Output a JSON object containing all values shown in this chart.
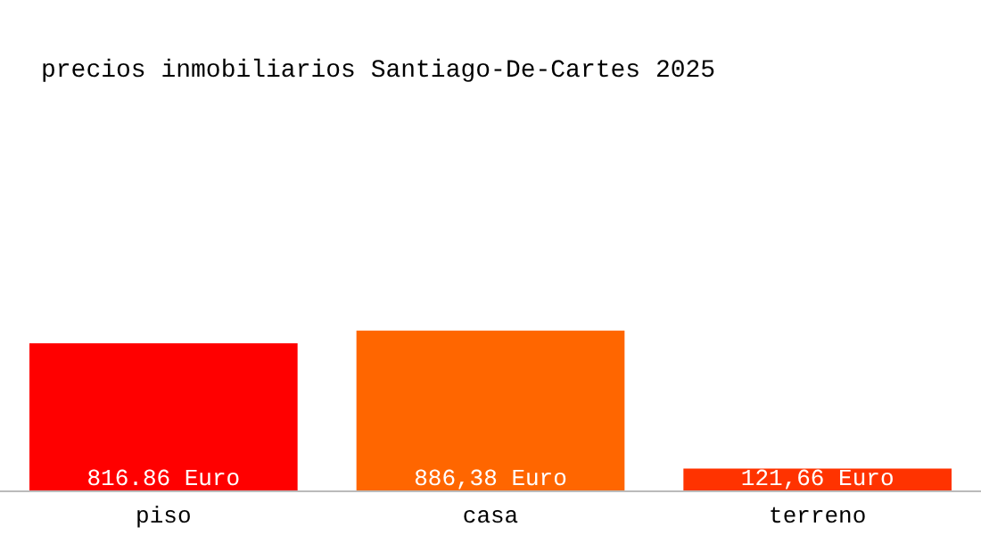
{
  "chart_data": {
    "type": "bar",
    "title": "precios inmobiliarios Santiago-De-Cartes 2025",
    "categories": [
      "piso",
      "casa",
      "terreno"
    ],
    "values": [
      816.86,
      886.38,
      121.66
    ],
    "value_labels": [
      "816.86 Euro",
      "886,38 Euro",
      "121,66 Euro"
    ],
    "colors": [
      "#ff0000",
      "#ff6600",
      "#ff3300"
    ]
  }
}
